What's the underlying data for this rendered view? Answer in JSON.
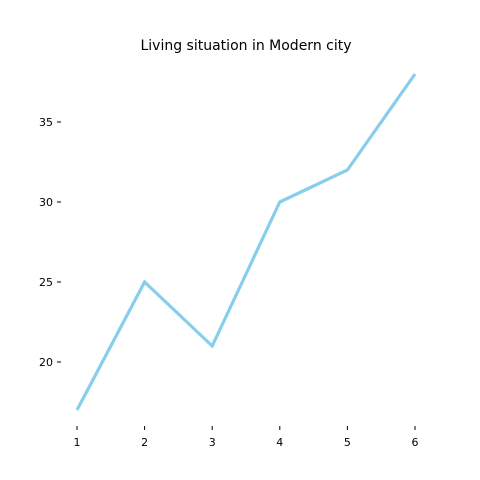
{
  "chart_data": {
    "type": "line",
    "title": "Living situation in Modern city",
    "xlabel": "",
    "ylabel": "",
    "x": [
      1,
      2,
      3,
      4,
      5,
      6
    ],
    "series": [
      {
        "values": [
          17,
          25,
          21,
          30,
          32,
          38
        ],
        "color": "#87CEEB"
      }
    ],
    "xticks": [
      1,
      2,
      3,
      4,
      5,
      6
    ],
    "yticks": [
      20,
      25,
      30,
      35
    ],
    "xlim": [
      1,
      6.9
    ],
    "ylim": [
      16,
      39
    ],
    "grid": false
  }
}
